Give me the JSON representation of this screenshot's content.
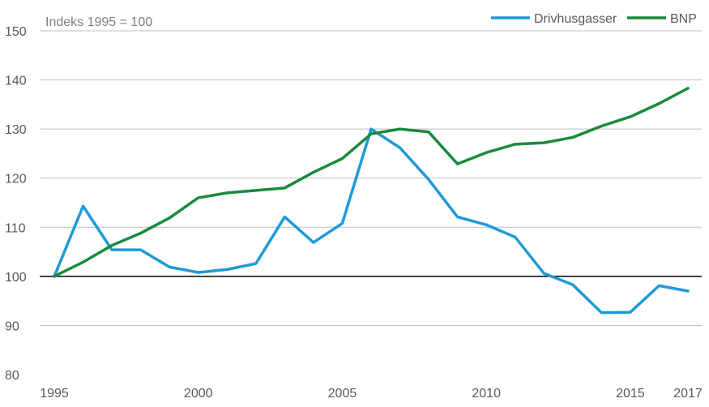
{
  "chart_data": {
    "type": "line",
    "title": "",
    "unit_label": "Indeks 1995 = 100",
    "xlabel": "",
    "ylabel": "",
    "x": [
      1995,
      1996,
      1997,
      1998,
      1999,
      2000,
      2001,
      2002,
      2003,
      2004,
      2005,
      2006,
      2007,
      2008,
      2009,
      2010,
      2011,
      2012,
      2013,
      2014,
      2015,
      2016,
      2017
    ],
    "x_ticks": [
      1995,
      2000,
      2005,
      2010,
      2015,
      2017
    ],
    "y_ticks": [
      80,
      90,
      100,
      110,
      120,
      130,
      140,
      150
    ],
    "ylim": [
      80,
      150
    ],
    "xlim": [
      1995,
      2017
    ],
    "reference_line": 100,
    "grid": true,
    "legend_position": "top-right",
    "series": [
      {
        "name": "Drivhusgasser",
        "color": "#1f9ad6",
        "values": [
          100,
          114.3,
          105.4,
          105.4,
          101.9,
          100.8,
          101.4,
          102.6,
          112.1,
          106.9,
          110.8,
          130.0,
          126.2,
          119.7,
          112.1,
          110.5,
          108.0,
          100.6,
          98.3,
          92.6,
          92.7,
          98.1,
          97.0
        ]
      },
      {
        "name": "BNP",
        "color": "#1a8a3c",
        "values": [
          100,
          102.9,
          106.3,
          108.8,
          111.9,
          116.0,
          117.0,
          117.5,
          118.0,
          121.2,
          124.0,
          129.0,
          130.0,
          129.4,
          122.9,
          125.2,
          126.9,
          127.2,
          128.3,
          130.6,
          132.5,
          135.2,
          138.3
        ]
      }
    ]
  }
}
